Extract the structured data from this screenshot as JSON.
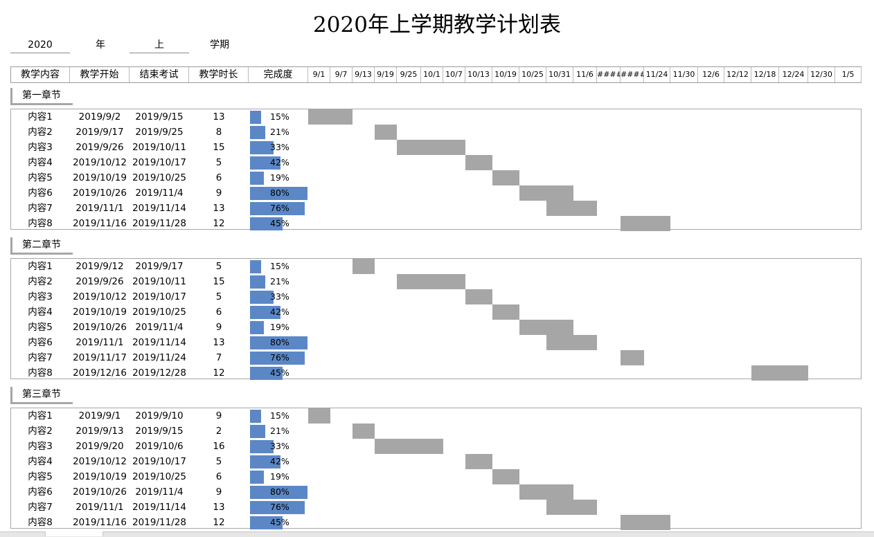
{
  "title": "2020年上学期教学计划表",
  "meta": {
    "year": "2020",
    "year_label": "年",
    "term": "上",
    "term_label": "学期"
  },
  "headers": [
    "教学内容",
    "教学开始",
    "结束考试",
    "教学时长",
    "完成度"
  ],
  "dates": [
    "9/1",
    "9/7",
    "9/13",
    "9/19",
    "9/25",
    "10/1",
    "10/7",
    "10/13",
    "10/19",
    "10/25",
    "10/31",
    "11/6",
    "####",
    "####",
    "11/24",
    "11/30",
    "12/6",
    "12/12",
    "12/18",
    "12/24",
    "12/30",
    "1/5"
  ],
  "chapters": [
    {
      "name": "第一章节",
      "rows": [
        {
          "content": "内容1",
          "start": "2019/9/2",
          "end": "2019/9/15",
          "duration": "13",
          "pct_text": "15%",
          "pct": 0.15
        },
        {
          "content": "内容2",
          "start": "2019/9/17",
          "end": "2019/9/25",
          "duration": "8",
          "pct_text": "21%",
          "pct": 0.21
        },
        {
          "content": "内容3",
          "start": "2019/9/26",
          "end": "2019/10/11",
          "duration": "15",
          "pct_text": "33%",
          "pct": 0.33
        },
        {
          "content": "内容4",
          "start": "2019/10/12",
          "end": "2019/10/17",
          "duration": "5",
          "pct_text": "42%",
          "pct": 0.42
        },
        {
          "content": "内容5",
          "start": "2019/10/19",
          "end": "2019/10/25",
          "duration": "6",
          "pct_text": "19%",
          "pct": 0.19
        },
        {
          "content": "内容6",
          "start": "2019/10/26",
          "end": "2019/11/4",
          "duration": "9",
          "pct_text": "80%",
          "pct": 0.8
        },
        {
          "content": "内容7",
          "start": "2019/11/1",
          "end": "2019/11/14",
          "duration": "13",
          "pct_text": "76%",
          "pct": 0.76
        },
        {
          "content": "内容8",
          "start": "2019/11/16",
          "end": "2019/11/28",
          "duration": "12",
          "pct_text": "45%",
          "pct": 0.45
        }
      ]
    },
    {
      "name": "第二章节",
      "rows": [
        {
          "content": "内容1",
          "start": "2019/9/12",
          "end": "2019/9/17",
          "duration": "5",
          "pct_text": "15%",
          "pct": 0.15
        },
        {
          "content": "内容2",
          "start": "2019/9/26",
          "end": "2019/10/11",
          "duration": "15",
          "pct_text": "21%",
          "pct": 0.21
        },
        {
          "content": "内容3",
          "start": "2019/10/12",
          "end": "2019/10/17",
          "duration": "5",
          "pct_text": "33%",
          "pct": 0.33
        },
        {
          "content": "内容4",
          "start": "2019/10/19",
          "end": "2019/10/25",
          "duration": "6",
          "pct_text": "42%",
          "pct": 0.42
        },
        {
          "content": "内容5",
          "start": "2019/10/26",
          "end": "2019/11/4",
          "duration": "9",
          "pct_text": "19%",
          "pct": 0.19
        },
        {
          "content": "内容6",
          "start": "2019/11/1",
          "end": "2019/11/14",
          "duration": "13",
          "pct_text": "80%",
          "pct": 0.8
        },
        {
          "content": "内容7",
          "start": "2019/11/17",
          "end": "2019/11/24",
          "duration": "7",
          "pct_text": "76%",
          "pct": 0.76
        },
        {
          "content": "内容8",
          "start": "2019/12/16",
          "end": "2019/12/28",
          "duration": "12",
          "pct_text": "45%",
          "pct": 0.45
        }
      ]
    },
    {
      "name": "第三章节",
      "rows": [
        {
          "content": "内容1",
          "start": "2019/9/1",
          "end": "2019/9/10",
          "duration": "9",
          "pct_text": "15%",
          "pct": 0.15
        },
        {
          "content": "内容2",
          "start": "2019/9/13",
          "end": "2019/9/15",
          "duration": "2",
          "pct_text": "21%",
          "pct": 0.21
        },
        {
          "content": "内容3",
          "start": "2019/9/20",
          "end": "2019/10/6",
          "duration": "16",
          "pct_text": "33%",
          "pct": 0.33
        },
        {
          "content": "内容4",
          "start": "2019/10/12",
          "end": "2019/10/17",
          "duration": "5",
          "pct_text": "42%",
          "pct": 0.42
        },
        {
          "content": "内容5",
          "start": "2019/10/19",
          "end": "2019/10/25",
          "duration": "6",
          "pct_text": "19%",
          "pct": 0.19
        },
        {
          "content": "内容6",
          "start": "2019/10/26",
          "end": "2019/11/4",
          "duration": "9",
          "pct_text": "80%",
          "pct": 0.8
        },
        {
          "content": "内容7",
          "start": "2019/11/1",
          "end": "2019/11/14",
          "duration": "13",
          "pct_text": "76%",
          "pct": 0.76
        },
        {
          "content": "内容8",
          "start": "2019/11/16",
          "end": "2019/11/28",
          "duration": "12",
          "pct_text": "45%",
          "pct": 0.45
        }
      ]
    }
  ],
  "colors": {
    "progress": "#5b87c6",
    "gantt": "#a6a6a6"
  }
}
